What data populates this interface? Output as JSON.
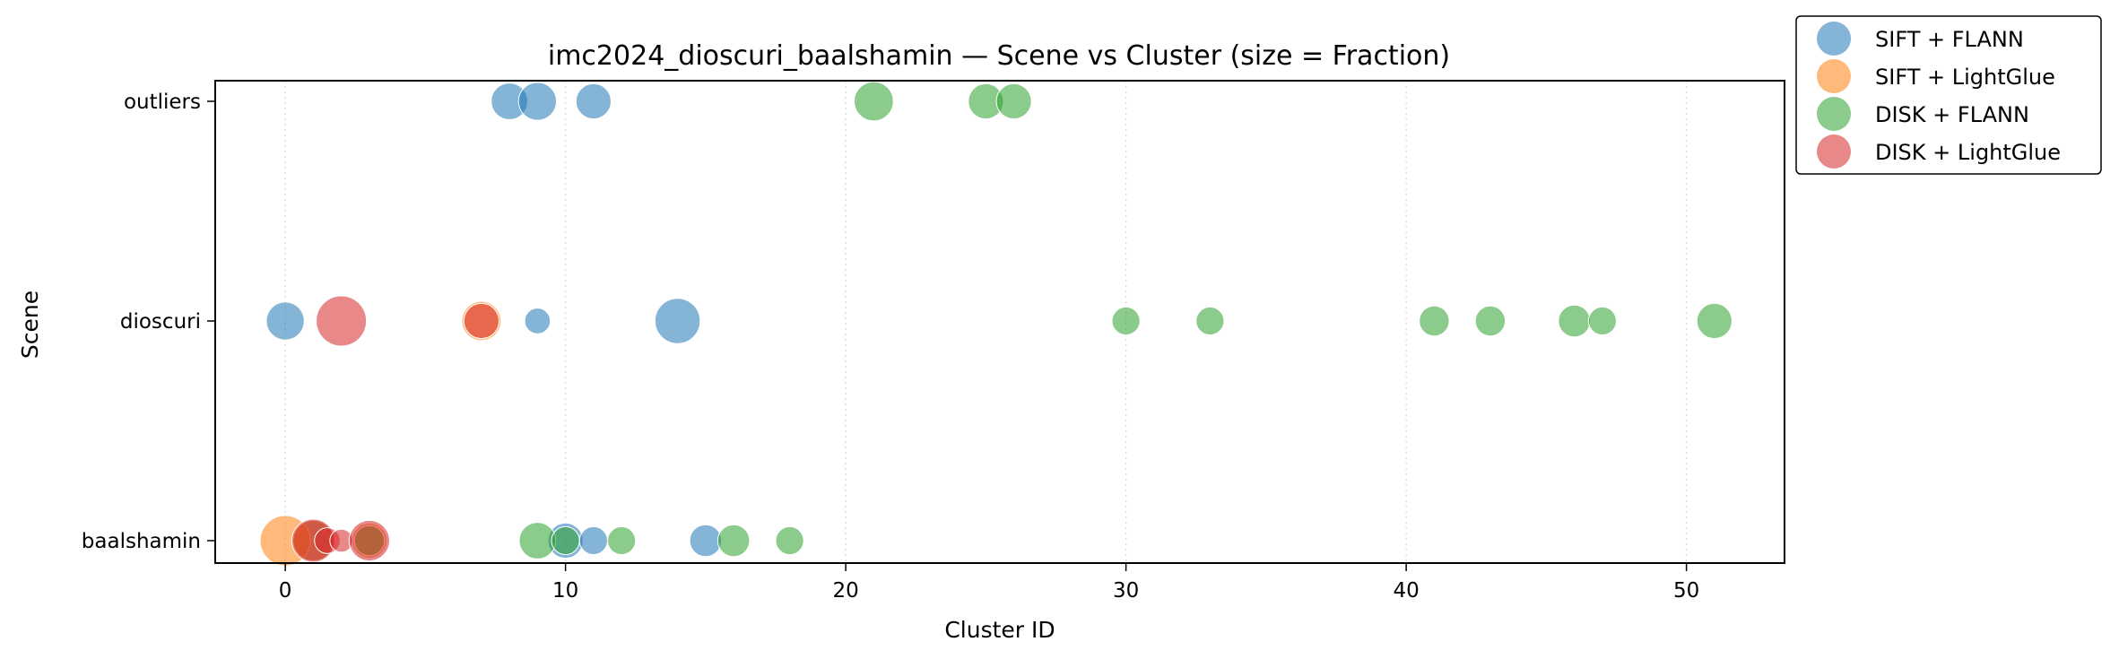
{
  "chart_data": {
    "type": "scatter",
    "title": "imc2024_dioscuri_baalshamin — Scene vs Cluster (size = Fraction)",
    "xlabel": "Cluster ID",
    "ylabel": "Scene",
    "xlim": [
      -2.5,
      53.5
    ],
    "x_ticks": [
      0,
      10,
      20,
      30,
      40,
      50
    ],
    "categories": [
      "baalshamin",
      "dioscuri",
      "outliers"
    ],
    "grid": "vertical-dotted",
    "legend_position": "outside-top-right",
    "series": [
      {
        "name": "SIFT + FLANN",
        "color": "#1f77b4",
        "points": [
          {
            "x": 8,
            "y": "outliers",
            "fraction": 0.09
          },
          {
            "x": 9,
            "y": "outliers",
            "fraction": 0.1
          },
          {
            "x": 11,
            "y": "outliers",
            "fraction": 0.08
          },
          {
            "x": 0,
            "y": "dioscuri",
            "fraction": 0.1
          },
          {
            "x": 9,
            "y": "dioscuri",
            "fraction": 0.03
          },
          {
            "x": 14,
            "y": "dioscuri",
            "fraction": 0.16
          },
          {
            "x": 1,
            "y": "baalshamin",
            "fraction": 0.13
          },
          {
            "x": 10,
            "y": "baalshamin",
            "fraction": 0.08
          },
          {
            "x": 11,
            "y": "baalshamin",
            "fraction": 0.04
          },
          {
            "x": 15,
            "y": "baalshamin",
            "fraction": 0.06
          }
        ]
      },
      {
        "name": "SIFT + LightGlue",
        "color": "#ff7f0e",
        "points": [
          {
            "x": 7,
            "y": "dioscuri",
            "fraction": 0.11
          },
          {
            "x": 0,
            "y": "baalshamin",
            "fraction": 0.21
          },
          {
            "x": 1,
            "y": "baalshamin",
            "fraction": 0.12
          },
          {
            "x": 3,
            "y": "baalshamin",
            "fraction": 0.08
          }
        ]
      },
      {
        "name": "DISK + FLANN",
        "color": "#2ca02c",
        "points": [
          {
            "x": 21,
            "y": "outliers",
            "fraction": 0.11
          },
          {
            "x": 25,
            "y": "outliers",
            "fraction": 0.08
          },
          {
            "x": 26,
            "y": "outliers",
            "fraction": 0.08
          },
          {
            "x": 30,
            "y": "dioscuri",
            "fraction": 0.04
          },
          {
            "x": 33,
            "y": "dioscuri",
            "fraction": 0.04
          },
          {
            "x": 41,
            "y": "dioscuri",
            "fraction": 0.05
          },
          {
            "x": 43,
            "y": "dioscuri",
            "fraction": 0.05
          },
          {
            "x": 46,
            "y": "dioscuri",
            "fraction": 0.06
          },
          {
            "x": 47,
            "y": "dioscuri",
            "fraction": 0.04
          },
          {
            "x": 51,
            "y": "dioscuri",
            "fraction": 0.08
          },
          {
            "x": 3,
            "y": "baalshamin",
            "fraction": 0.05
          },
          {
            "x": 9,
            "y": "baalshamin",
            "fraction": 0.09
          },
          {
            "x": 10,
            "y": "baalshamin",
            "fraction": 0.04
          },
          {
            "x": 12,
            "y": "baalshamin",
            "fraction": 0.04
          },
          {
            "x": 16,
            "y": "baalshamin",
            "fraction": 0.06
          },
          {
            "x": 18,
            "y": "baalshamin",
            "fraction": 0.04
          }
        ]
      },
      {
        "name": "DISK + LightGlue",
        "color": "#d62728",
        "points": [
          {
            "x": 2,
            "y": "dioscuri",
            "fraction": 0.21
          },
          {
            "x": 7,
            "y": "dioscuri",
            "fraction": 0.08
          },
          {
            "x": 1,
            "y": "baalshamin",
            "fraction": 0.14
          },
          {
            "x": 1.5,
            "y": "baalshamin",
            "fraction": 0.03
          },
          {
            "x": 2,
            "y": "baalshamin",
            "fraction": 0.02
          },
          {
            "x": 3,
            "y": "baalshamin",
            "fraction": 0.12
          }
        ]
      }
    ]
  }
}
